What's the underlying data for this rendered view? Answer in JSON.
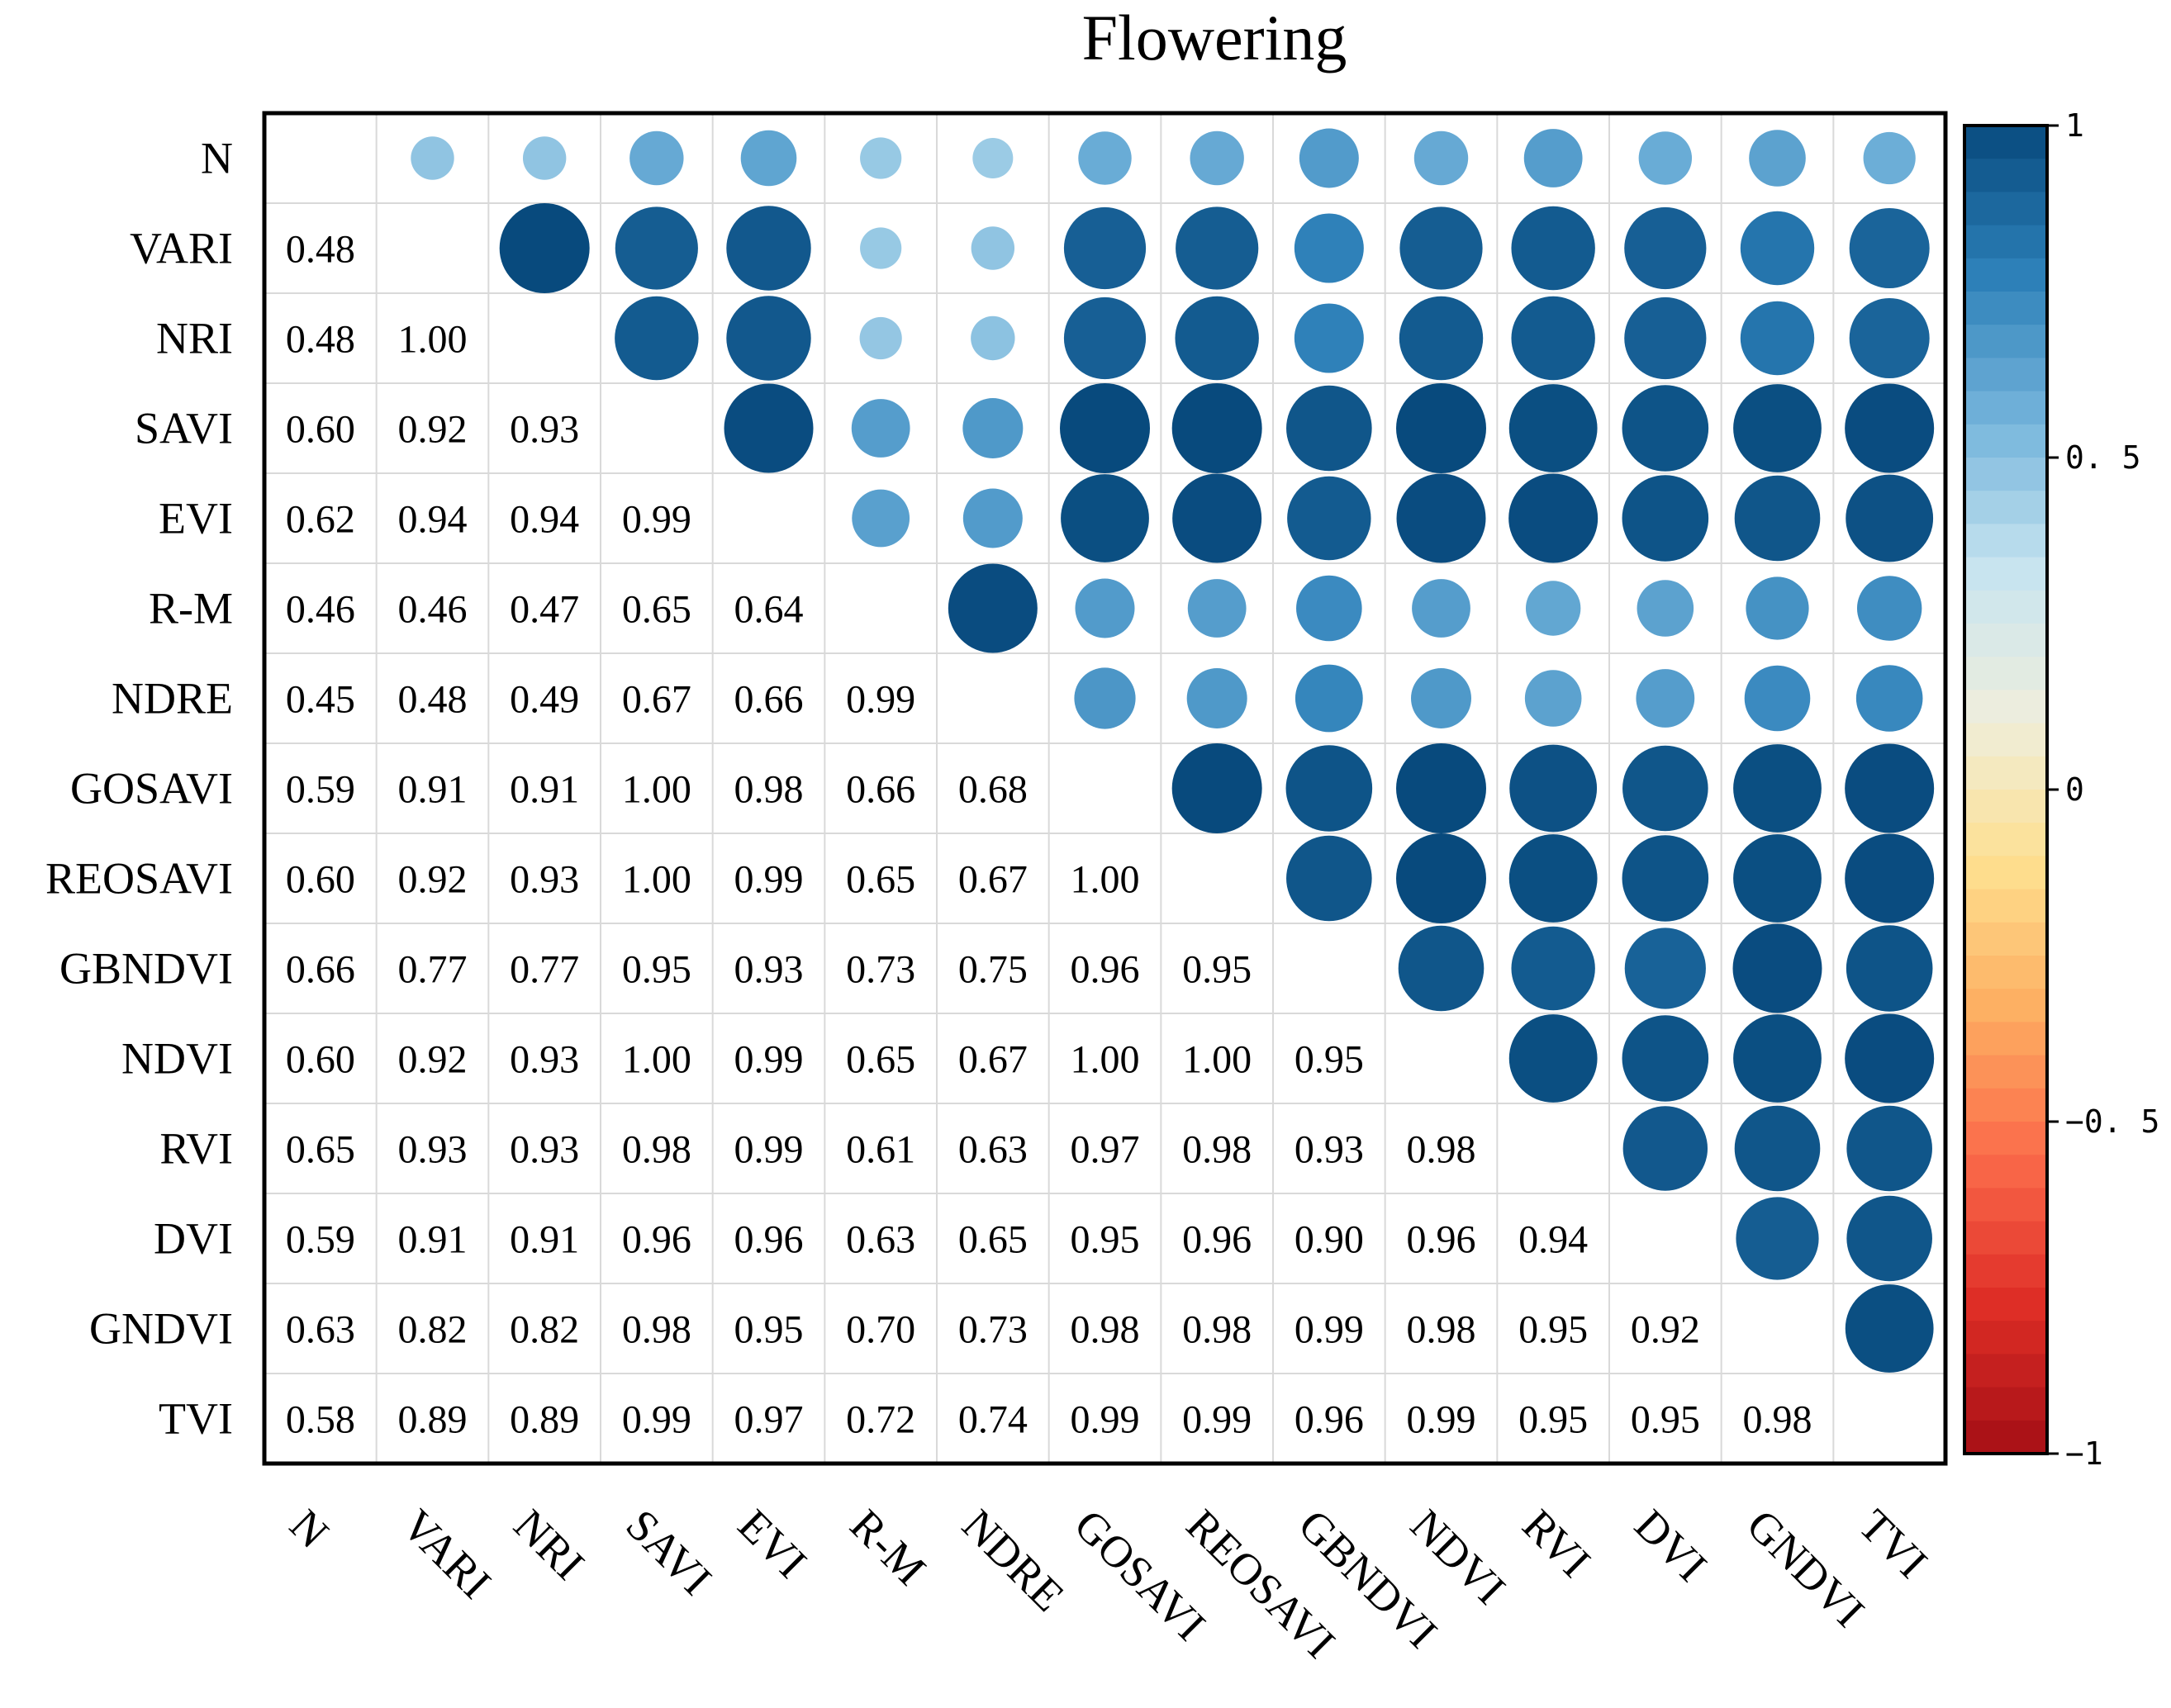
{
  "chart_data": {
    "type": "correlation-matrix",
    "title": "Flowering",
    "variables": [
      "N",
      "VARI",
      "NRI",
      "SAVI",
      "EVI",
      "R-M",
      "NDRE",
      "GOSAVI",
      "REOSAVI",
      "GBNDVI",
      "NDVI",
      "RVI",
      "DVI",
      "GNDVI",
      "TVI"
    ],
    "lower_triangle_values": [
      [],
      [
        "0.48"
      ],
      [
        "0.48",
        "1.00"
      ],
      [
        "0.60",
        "0.92",
        "0.93"
      ],
      [
        "0.62",
        "0.94",
        "0.94",
        "0.99"
      ],
      [
        "0.46",
        "0.46",
        "0.47",
        "0.65",
        "0.64"
      ],
      [
        "0.45",
        "0.48",
        "0.49",
        "0.67",
        "0.66",
        "0.99"
      ],
      [
        "0.59",
        "0.91",
        "0.91",
        "1.00",
        "0.98",
        "0.66",
        "0.68"
      ],
      [
        "0.60",
        "0.92",
        "0.93",
        "1.00",
        "0.99",
        "0.65",
        "0.67",
        "1.00"
      ],
      [
        "0.66",
        "0.77",
        "0.77",
        "0.95",
        "0.93",
        "0.73",
        "0.75",
        "0.96",
        "0.95"
      ],
      [
        "0.60",
        "0.92",
        "0.93",
        "1.00",
        "0.99",
        "0.65",
        "0.67",
        "1.00",
        "1.00",
        "0.95"
      ],
      [
        "0.65",
        "0.93",
        "0.93",
        "0.98",
        "0.99",
        "0.61",
        "0.63",
        "0.97",
        "0.98",
        "0.93",
        "0.98"
      ],
      [
        "0.59",
        "0.91",
        "0.91",
        "0.96",
        "0.96",
        "0.63",
        "0.65",
        "0.95",
        "0.96",
        "0.90",
        "0.96",
        "0.94"
      ],
      [
        "0.63",
        "0.82",
        "0.82",
        "0.98",
        "0.95",
        "0.70",
        "0.73",
        "0.98",
        "0.98",
        "0.99",
        "0.98",
        "0.95",
        "0.92"
      ],
      [
        "0.58",
        "0.89",
        "0.89",
        "0.99",
        "0.97",
        "0.72",
        "0.74",
        "0.99",
        "0.99",
        "0.96",
        "0.99",
        "0.95",
        "0.95",
        "0.98"
      ]
    ],
    "colorbar": {
      "range": [
        -1,
        1
      ],
      "ticks": [
        1,
        0.5,
        0,
        -0.5,
        -1
      ],
      "tick_labels": [
        "1",
        "0. 5",
        "0",
        "−0. 5",
        "−1"
      ]
    },
    "colors": [
      "#a50f15",
      "#de2d26",
      "#fb6a4a",
      "#fdae61",
      "#fee090",
      "#eeeedd",
      "#c6e4f0",
      "#74b4db",
      "#2c7fb8",
      "#084a7d"
    ]
  }
}
